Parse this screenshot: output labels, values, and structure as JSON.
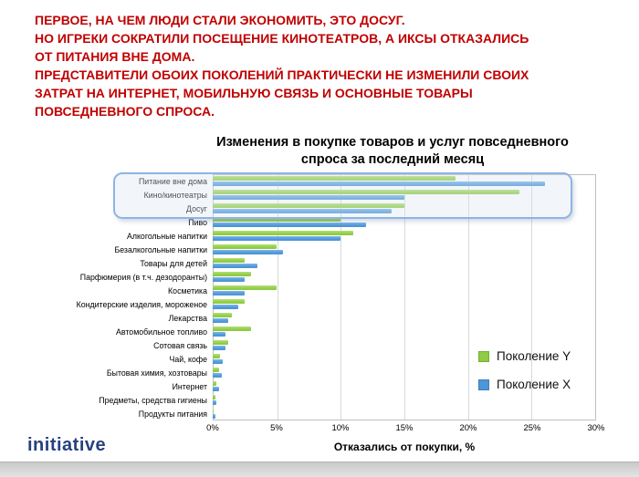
{
  "slide": {
    "headline": "ПЕРВОЕ, НА ЧЕМ ЛЮДИ СТАЛИ ЭКОНОМИТЬ, ЭТО ДОСУГ.\nНО ИГРЕКИ СОКРАТИЛИ ПОСЕЩЕНИЕ КИНОТЕАТРОВ, А ИКСЫ ОТКАЗАЛИСЬ\nОТ ПИТАНИЯ ВНЕ ДОМА.\nПРЕДСТАВИТЕЛИ ОБОИХ ПОКОЛЕНИЙ ПРАКТИЧЕСКИ НЕ ИЗМЕНИЛИ СВОИХ\nЗАТРАТ НА ИНТЕРНЕТ, МОБИЛЬНУЮ СВЯЗЬ И ОСНОВНЫЕ ТОВАРЫ\nПОВСЕДНЕВНОГО СПРОСА.",
    "headline_color": "#C00000",
    "logo_text": "initiative",
    "logo_color": "#26417F"
  },
  "chart_data": {
    "type": "bar",
    "orientation": "horizontal",
    "title": "Изменения в покупке товаров и услуг повседневного\nспроса за последний месяц",
    "xlabel": "Отказались от покупки, %",
    "xlim": [
      0,
      30
    ],
    "grid": true,
    "legend_position": "right-inside",
    "ticks": [
      "0%",
      "5%",
      "10%",
      "15%",
      "20%",
      "25%",
      "30%"
    ],
    "tick_values": [
      0,
      5,
      10,
      15,
      20,
      25,
      30
    ],
    "categories": [
      "Питание вне дома",
      "Кино/кинотеатры",
      "Досуг",
      "Пиво",
      "Алкогольные напитки",
      "Безалкогольные напитки",
      "Товары для детей",
      "Парфюмерия (в т.ч. дезодоранты)",
      "Косметика",
      "Кондитерские изделия, мороженое",
      "Лекарства",
      "Автомобильное топливо",
      "Сотовая связь",
      "Чай, кофе",
      "Бытовая химия, хозтовары",
      "Интернет",
      "Предметы, средства гигиены",
      "Продукты питания"
    ],
    "series": [
      {
        "name": "Поколение Y",
        "color": "#8FCB43",
        "color_light": "#B4DF77",
        "values": [
          19,
          24,
          15,
          10,
          11,
          5,
          2.5,
          3,
          5,
          2.5,
          1.5,
          3,
          1.2,
          0.6,
          0.5,
          0.3,
          0.2,
          0.1
        ]
      },
      {
        "name": "Поколение X",
        "color": "#4D96D8",
        "color_light": "#7CB6E6",
        "values": [
          26,
          15,
          14,
          12,
          10,
          5.5,
          3.5,
          2.5,
          2.5,
          2,
          1.2,
          1,
          1,
          0.8,
          0.7,
          0.5,
          0.3,
          0.2
        ]
      }
    ],
    "highlight": {
      "categories": [
        "Питание вне дома",
        "Кино/кинотеатры",
        "Досуг"
      ]
    }
  }
}
